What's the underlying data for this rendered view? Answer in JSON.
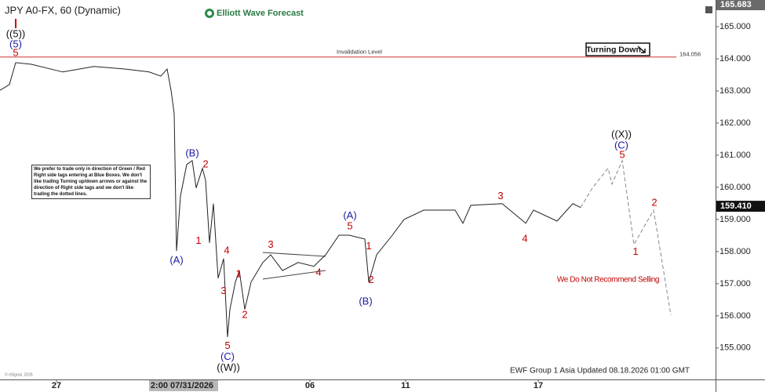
{
  "chart_data": {
    "type": "line",
    "title": "JPY A0-FX, 60 (Dynamic)",
    "brand": "Elliott Wave Forecast",
    "tag": "Turning Down",
    "note": "We prefer to trade only in direction of Green / Red Right side tags entering at Blue Boxes. We don't like trading Turning up/down arrows or against the direction of Right side tags and we don't like trading the dotted lines.",
    "footer": "EWF Group 1 Asia Updated 08.18.2026 01:00 GMT",
    "copyright": "© eSignal, 2026",
    "xlim": [
      0,
      228
    ],
    "ylim": [
      154.02,
      165.83
    ],
    "xticks": [
      {
        "value": 18,
        "label": "27"
      },
      {
        "value": 58,
        "label": "2:00 07/31/2026"
      },
      {
        "value": 98.75,
        "label": "06"
      },
      {
        "value": 129.25,
        "label": "11"
      },
      {
        "value": 171.5,
        "label": "17"
      }
    ],
    "yticks": [
      {
        "value": 155,
        "label": "155.000"
      },
      {
        "value": 156,
        "label": "156.000"
      },
      {
        "value": 157,
        "label": "157.000"
      },
      {
        "value": 158,
        "label": "158.000"
      },
      {
        "value": 159,
        "label": "159.000"
      },
      {
        "value": 160,
        "label": "160.000"
      },
      {
        "value": 161,
        "label": "161.000"
      },
      {
        "value": 162,
        "label": "162.000"
      },
      {
        "value": 163,
        "label": "163.000"
      },
      {
        "value": 164,
        "label": "164.000"
      },
      {
        "value": 165,
        "label": "165.000"
      }
    ],
    "high_label": {
      "value": 165.683,
      "label": "165.683"
    },
    "last_price": {
      "value": 159.41,
      "label": "159.410"
    },
    "invalidation": {
      "value": 164.056,
      "label": "Invalidation Level",
      "value_label": "164.056",
      "color": "#d03030"
    },
    "series": [
      {
        "name": "Price",
        "color": "#222222",
        "dashed": false,
        "x": [
          0,
          3,
          5,
          10,
          20,
          30,
          40,
          47.5,
          51.25,
          53.25,
          54.5,
          55.5,
          56.25,
          57.5,
          59.5,
          61.25,
          62.5,
          64.5,
          65.5,
          66.75,
          68,
          69.5,
          71.25,
          72.5,
          73.25,
          75,
          76.25,
          78,
          80,
          83.75,
          86.25,
          90,
          95,
          100,
          103.75,
          108,
          111.25,
          116.25,
          117.5,
          120,
          125,
          128.75,
          135,
          145,
          147.5,
          150,
          160,
          167.5,
          170,
          177.5,
          182.5,
          185
        ],
        "values": [
          163.02,
          163.2,
          163.88,
          163.83,
          163.59,
          163.76,
          163.68,
          163.59,
          163.46,
          163.68,
          163.02,
          162.29,
          158.02,
          159.73,
          160.71,
          160.83,
          159.98,
          160.59,
          160.22,
          158.27,
          159.49,
          157.17,
          157.78,
          155.34,
          156.2,
          157.05,
          157.41,
          156.2,
          157.05,
          157.66,
          157.9,
          157.41,
          157.66,
          157.54,
          157.9,
          158.51,
          158.51,
          158.39,
          157.05,
          157.9,
          158.51,
          159.0,
          159.29,
          159.29,
          158.88,
          159.44,
          159.49,
          158.88,
          159.29,
          158.95,
          159.49,
          159.37
        ]
      },
      {
        "name": "Projection",
        "color": "#888888",
        "dashed": true,
        "x": [
          185,
          188.75,
          193.75,
          195,
          198.25,
          202,
          208.25,
          213.75
        ],
        "values": [
          159.37,
          159.98,
          160.59,
          160.1,
          160.83,
          158.22,
          159.29,
          156.02
        ]
      }
    ],
    "annotations": [
      {
        "text": "((5))",
        "x": 5,
        "y": 164.76,
        "color": "#111111"
      },
      {
        "text": "(5)",
        "x": 5,
        "y": 164.44,
        "color": "#1a1aa0"
      },
      {
        "text": "5",
        "x": 5,
        "y": 164.17,
        "color": "#c00000"
      },
      {
        "text": "(B)",
        "x": 61.25,
        "y": 161.05,
        "color": "#1a1aa0"
      },
      {
        "text": "2",
        "x": 65.5,
        "y": 160.71,
        "color": "#c00000"
      },
      {
        "text": "1",
        "x": 63.25,
        "y": 158.32,
        "color": "#c00000"
      },
      {
        "text": "(A)",
        "x": 56.25,
        "y": 157.71,
        "color": "#1a1aa0"
      },
      {
        "text": "4",
        "x": 72.25,
        "y": 158.02,
        "color": "#c00000"
      },
      {
        "text": "3",
        "x": 71.25,
        "y": 156.76,
        "color": "#c00000"
      },
      {
        "text": "1",
        "x": 76,
        "y": 157.29,
        "color": "#c00000"
      },
      {
        "text": "2",
        "x": 78,
        "y": 156.02,
        "color": "#c00000"
      },
      {
        "text": "5",
        "x": 72.5,
        "y": 155.05,
        "color": "#c00000"
      },
      {
        "text": "(C)",
        "x": 72.5,
        "y": 154.71,
        "color": "#1a1aa0"
      },
      {
        "text": "((W))",
        "x": 72.75,
        "y": 154.37,
        "color": "#111111"
      },
      {
        "text": "3",
        "x": 86.25,
        "y": 158.2,
        "color": "#c00000"
      },
      {
        "text": "4",
        "x": 101.5,
        "y": 157.34,
        "color": "#c00000"
      },
      {
        "text": "(A)",
        "x": 111.5,
        "y": 159.1,
        "color": "#1a1aa0"
      },
      {
        "text": "5",
        "x": 111.5,
        "y": 158.78,
        "color": "#c00000"
      },
      {
        "text": "1",
        "x": 117.5,
        "y": 158.15,
        "color": "#c00000"
      },
      {
        "text": "2",
        "x": 118.25,
        "y": 157.1,
        "color": "#c00000"
      },
      {
        "text": "(B)",
        "x": 116.5,
        "y": 156.44,
        "color": "#1a1aa0"
      },
      {
        "text": "3",
        "x": 159.5,
        "y": 159.71,
        "color": "#c00000"
      },
      {
        "text": "4",
        "x": 167.25,
        "y": 158.39,
        "color": "#c00000"
      },
      {
        "text": "((X))",
        "x": 198,
        "y": 161.63,
        "color": "#111111"
      },
      {
        "text": "(C)",
        "x": 198,
        "y": 161.29,
        "color": "#1a1aa0"
      },
      {
        "text": "5",
        "x": 198.25,
        "y": 161.0,
        "color": "#c00000"
      },
      {
        "text": "1",
        "x": 202.5,
        "y": 157.98,
        "color": "#c00000"
      },
      {
        "text": "2",
        "x": 208.5,
        "y": 159.51,
        "color": "#c00000"
      },
      {
        "text": "We Do Not Recommend Selling",
        "x": 193.75,
        "y": 157.12,
        "color": "#c00000",
        "small": true
      }
    ]
  }
}
